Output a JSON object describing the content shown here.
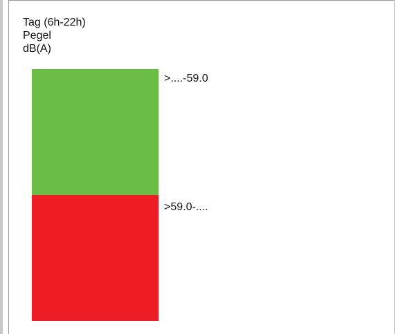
{
  "legend": {
    "title_lines": [
      "Tag (6h-22h)",
      "Pegel",
      "dB(A)"
    ],
    "classes": [
      {
        "label": ">....-59.0",
        "color": "#6cbd45"
      },
      {
        "label": ">59.0-....",
        "color": "#ee1c24"
      }
    ]
  }
}
